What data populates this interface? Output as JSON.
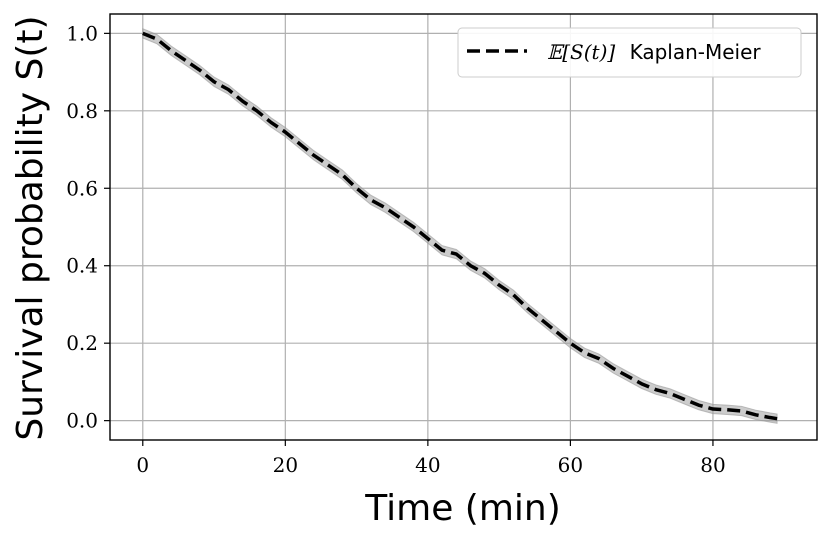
{
  "chart_data": {
    "type": "line",
    "title": "",
    "xlabel": "Time (min)",
    "ylabel": "Survival probability S(t)",
    "xlim": [
      -4.6,
      94.6
    ],
    "ylim": [
      -0.05,
      1.05
    ],
    "xticks": [
      0,
      20,
      40,
      60,
      80
    ],
    "xtick_labels": [
      "0",
      "20",
      "40",
      "60",
      "80"
    ],
    "yticks": [
      0.0,
      0.2,
      0.4,
      0.6,
      0.8,
      1.0
    ],
    "ytick_labels": [
      "0.0",
      "0.2",
      "0.4",
      "0.6",
      "0.8",
      "1.0"
    ],
    "grid": true,
    "legend_position": "top-right",
    "series": [
      {
        "name": "E[S(t)] Kaplan-Meier",
        "legend_math": "𝔼[S(t)]",
        "legend_text": "Kaplan-Meier",
        "style": "dashed",
        "color": "#000000",
        "band_color": "#999999",
        "band_halfwidth": 0.012,
        "x": [
          0,
          2,
          4,
          6,
          8,
          10,
          12,
          14,
          16,
          18,
          20,
          22,
          24,
          26,
          28,
          30,
          32,
          34,
          36,
          38,
          40,
          42,
          44,
          46,
          48,
          50,
          52,
          54,
          56,
          58,
          60,
          62,
          64,
          66,
          68,
          70,
          72,
          74,
          76,
          78,
          80,
          82,
          84,
          86,
          88,
          89
        ],
        "values": [
          1.0,
          0.985,
          0.955,
          0.93,
          0.905,
          0.875,
          0.855,
          0.825,
          0.8,
          0.77,
          0.745,
          0.715,
          0.685,
          0.66,
          0.635,
          0.6,
          0.57,
          0.55,
          0.525,
          0.5,
          0.47,
          0.44,
          0.43,
          0.4,
          0.38,
          0.35,
          0.325,
          0.29,
          0.26,
          0.23,
          0.2,
          0.175,
          0.16,
          0.135,
          0.115,
          0.095,
          0.08,
          0.07,
          0.055,
          0.04,
          0.03,
          0.028,
          0.025,
          0.015,
          0.008,
          0.005
        ]
      }
    ]
  },
  "colors": {
    "grid": "#b0b0b0",
    "frame": "#000000",
    "legend_border": "#cccccc"
  }
}
